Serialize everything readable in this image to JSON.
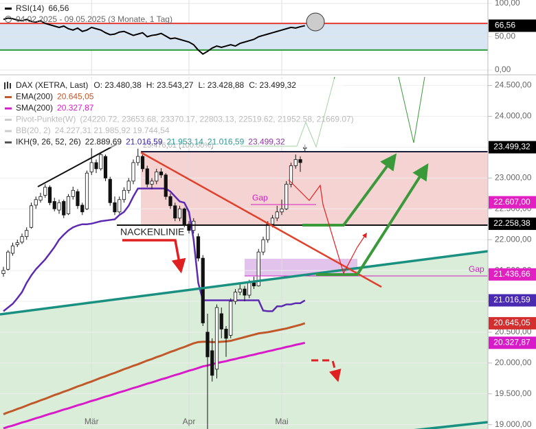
{
  "chart_data": [
    {
      "type": "line",
      "subtitle": "04.02.2025 - 09.05.2025 (3 Monate, 1 Tag)",
      "series": [
        {
          "name": "RSI(14)",
          "value_label": "66,56",
          "color": "#000000",
          "values": [
            76,
            78,
            77,
            75,
            74,
            76,
            73,
            72,
            74,
            70,
            68,
            66,
            64,
            66,
            62,
            60,
            63,
            58,
            60,
            64,
            62,
            60,
            56,
            53,
            54,
            57,
            58,
            55,
            52,
            54,
            56,
            50,
            52,
            53,
            55,
            51,
            47,
            48,
            46,
            44,
            42,
            38,
            30,
            24,
            28,
            33,
            36,
            34,
            36,
            38,
            36,
            40,
            42,
            44,
            46,
            50,
            52,
            54,
            56,
            58,
            60,
            62,
            64,
            63,
            65,
            66.56
          ]
        }
      ],
      "ylim": [
        0,
        100
      ],
      "yticks": [
        {
          "value": 0,
          "label": "0,00"
        },
        {
          "value": 50,
          "label": "50,00"
        },
        {
          "value": 100,
          "label": "100,00"
        }
      ],
      "levels": [
        {
          "value": 70,
          "color": "#e53935"
        },
        {
          "value": 30,
          "color": "#2e9c3a"
        }
      ],
      "band_color": "#d8e6f3"
    },
    {
      "type": "candlestick",
      "title": "DAX (XETRA, Last)",
      "ohlc_labels": [
        "O: 23.480,38",
        "H: 23.543,27",
        "L: 23.428,88",
        "C: 23.499,32"
      ],
      "categories": [
        null,
        null,
        null,
        null,
        null,
        null,
        null,
        null,
        null,
        null,
        null,
        null,
        null,
        null,
        null,
        null,
        null,
        null,
        null,
        "Mär",
        null,
        null,
        null,
        null,
        null,
        null,
        null,
        null,
        null,
        null,
        null,
        null,
        null,
        null,
        null,
        null,
        null,
        null,
        null,
        null,
        "Apr",
        null,
        null,
        null,
        null,
        null,
        null,
        null,
        null,
        null,
        null,
        null,
        null,
        null,
        null,
        null,
        null,
        null,
        null,
        null,
        "Mai",
        null,
        null,
        null,
        null,
        null
      ],
      "ohlc": [
        [
          21450,
          21560,
          21400,
          21500
        ],
        [
          21520,
          21830,
          21500,
          21800
        ],
        [
          21780,
          21950,
          21740,
          21900
        ],
        [
          21920,
          22000,
          21880,
          21950
        ],
        [
          21960,
          22100,
          21930,
          22050
        ],
        [
          22050,
          22200,
          22000,
          22150
        ],
        [
          22200,
          22600,
          22180,
          22550
        ],
        [
          22560,
          22700,
          22500,
          22650
        ],
        [
          22640,
          22760,
          22600,
          22700
        ],
        [
          22720,
          22900,
          22680,
          22850
        ],
        [
          22850,
          22880,
          22560,
          22600
        ],
        [
          22620,
          22680,
          22460,
          22500
        ],
        [
          22480,
          22650,
          22420,
          22600
        ],
        [
          22620,
          22650,
          22350,
          22400
        ],
        [
          22420,
          22740,
          22400,
          22700
        ],
        [
          22700,
          22860,
          22650,
          22800
        ],
        [
          22780,
          22820,
          22500,
          22550
        ],
        [
          22560,
          22600,
          22400,
          22450
        ],
        [
          22500,
          23120,
          22480,
          23080
        ],
        [
          23100,
          23480,
          23050,
          23250
        ],
        [
          23250,
          23300,
          23080,
          23150
        ],
        [
          23150,
          23420,
          23120,
          23380
        ],
        [
          23350,
          23380,
          22950,
          23000
        ],
        [
          22980,
          23020,
          22550,
          22600
        ],
        [
          22600,
          22700,
          22400,
          22450
        ],
        [
          22450,
          22700,
          22420,
          22650
        ],
        [
          22650,
          22850,
          22600,
          22800
        ],
        [
          22800,
          23000,
          22750,
          22950
        ],
        [
          22950,
          23300,
          22900,
          23250
        ],
        [
          23250,
          23476,
          23200,
          23350
        ],
        [
          23350,
          23380,
          23100,
          23150
        ],
        [
          23150,
          23200,
          22850,
          22900
        ],
        [
          22900,
          23000,
          22820,
          22950
        ],
        [
          22950,
          23150,
          22900,
          23100
        ],
        [
          23100,
          23160,
          23000,
          23050
        ],
        [
          23050,
          23080,
          22650,
          22700
        ],
        [
          22700,
          22750,
          22500,
          22550
        ],
        [
          22550,
          22600,
          22300,
          22350
        ],
        [
          22350,
          22550,
          22300,
          22500
        ],
        [
          22500,
          22520,
          22200,
          22250
        ],
        [
          22250,
          22300,
          22100,
          22150
        ],
        [
          22150,
          22350,
          22100,
          22300
        ],
        [
          22050,
          22100,
          21650,
          21700
        ],
        [
          21700,
          21750,
          20600,
          20650
        ],
        [
          20500,
          20800,
          18890,
          20100
        ],
        [
          20200,
          20400,
          19700,
          19800
        ],
        [
          19900,
          20950,
          19750,
          20900
        ],
        [
          20800,
          20900,
          20400,
          20550
        ],
        [
          20550,
          20600,
          20100,
          20400
        ],
        [
          20450,
          21050,
          20400,
          21000
        ],
        [
          21000,
          21200,
          20950,
          21150
        ],
        [
          21150,
          21300,
          21100,
          21200
        ],
        [
          21200,
          21250,
          21000,
          21100
        ],
        [
          21100,
          21350,
          21050,
          21300
        ],
        [
          21300,
          21400,
          21200,
          21250
        ],
        [
          21250,
          21850,
          21240,
          21800
        ],
        [
          21800,
          22050,
          21750,
          22000
        ],
        [
          22000,
          22300,
          21950,
          22250
        ],
        [
          22250,
          22400,
          22200,
          22350
        ],
        [
          22350,
          22550,
          22300,
          22450
        ],
        [
          22450,
          22650,
          22400,
          22500
        ],
        [
          22500,
          22950,
          22480,
          22900
        ],
        [
          22900,
          23250,
          22850,
          23200
        ],
        [
          23200,
          23380,
          23150,
          23300
        ],
        [
          23300,
          23350,
          23100,
          23250
        ],
        [
          23480.38,
          23543.27,
          23428.88,
          23499.32
        ]
      ],
      "series": [
        {
          "name": "EMA(200)",
          "value_label": "20.645,05",
          "color": "#c0582a",
          "values": [
            19170,
            19200,
            19225,
            19255,
            19280,
            19310,
            19340,
            19365,
            19395,
            19420,
            19450,
            19480,
            19505,
            19535,
            19560,
            19590,
            19620,
            19645,
            19675,
            19700,
            19730,
            19760,
            19785,
            19815,
            19840,
            19870,
            19900,
            19925,
            19955,
            19980,
            20010,
            20040,
            20065,
            20095,
            20120,
            20150,
            20180,
            20205,
            20235,
            20260,
            20290,
            20320,
            20340,
            20345,
            20345,
            20340,
            20340,
            20345,
            20350,
            20360,
            20380,
            20400,
            20420,
            20440,
            20460,
            20480,
            20490,
            20500,
            20515,
            20530,
            20545,
            20560,
            20580,
            20600,
            20620,
            20645.05
          ]
        },
        {
          "name": "SMA(200)",
          "value_label": "20.327,87",
          "color": "#d81bc8",
          "values": [
            18940,
            18965,
            18985,
            19010,
            19035,
            19055,
            19080,
            19105,
            19125,
            19150,
            19175,
            19195,
            19220,
            19245,
            19265,
            19290,
            19315,
            19335,
            19360,
            19385,
            19405,
            19430,
            19455,
            19475,
            19500,
            19525,
            19545,
            19570,
            19595,
            19615,
            19640,
            19665,
            19685,
            19710,
            19735,
            19755,
            19780,
            19805,
            19825,
            19850,
            19875,
            19895,
            19920,
            19945,
            19960,
            19980,
            20000,
            20015,
            20030,
            20050,
            20065,
            20085,
            20100,
            20120,
            20135,
            20155,
            20170,
            20190,
            20205,
            20225,
            20240,
            20260,
            20275,
            20295,
            20310,
            20327.87
          ]
        },
        {
          "name": "IKH(9, 26, 52, 26)",
          "color": "#5b2ab0",
          "legend_values": [
            "22.889,69",
            "21.016,59",
            "21.953,14",
            "21.016,59",
            "23.499,32"
          ],
          "legend_colors": [
            "#222222",
            "#3a2aa8",
            "#2a9a9a",
            "#2a9a9a",
            "#8a3aa0"
          ],
          "values": [
            20840,
            20900,
            20960,
            21050,
            21150,
            21300,
            21420,
            21520,
            21600,
            21680,
            21780,
            21880,
            22000,
            22080,
            22150,
            22200,
            22230,
            22250,
            22250,
            22260,
            22280,
            22300,
            22310,
            22320,
            22330,
            22400,
            22450,
            22550,
            22700,
            22830,
            22830,
            22830,
            22830,
            22830,
            22830,
            22830,
            22780,
            22700,
            22620,
            22600,
            22450,
            22000,
            21300,
            21016.59,
            21016.59,
            21016.59,
            21016.59,
            21016.59,
            21016.59,
            21016.59,
            21016.59,
            21016.59,
            21016.59,
            21016.59,
            21016.59,
            21016.59,
            20850,
            20840,
            20840,
            20920,
            20920,
            20950,
            20950,
            20970,
            20970,
            21016.59
          ]
        }
      ],
      "legend_extra": [
        {
          "name": "Pivot-Punkte(W)",
          "text": "(24220.72, 23653.68, 23370.17, 22803.13, 22519.62, 21952.58, 21669.07)"
        },
        {
          "name": "BB(20, 2)",
          "text": "24.227,31  21.985,92  19.744,54"
        }
      ],
      "ylim": [
        18930,
        24640
      ],
      "yticks": [
        {
          "value": 24500,
          "label": "24.500,00"
        },
        {
          "value": 24000,
          "label": "24.000,00"
        },
        {
          "value": 23500,
          "label": "23.500,00"
        },
        {
          "value": 23000,
          "label": "23.000,00"
        },
        {
          "value": 22500,
          "label": "22.500,00"
        },
        {
          "value": 22000,
          "label": "22.000,00"
        },
        {
          "value": 21500,
          "label": "21.500,00"
        },
        {
          "value": 21000,
          "label": "21.000,00"
        },
        {
          "value": 20500,
          "label": "20.500,00"
        },
        {
          "value": 20000,
          "label": "20.000,00"
        },
        {
          "value": 19500,
          "label": "19.500,00"
        },
        {
          "value": 19000,
          "label": "19.000,00"
        }
      ],
      "price_tags": [
        {
          "value": 23499.32,
          "label": "23.499,32",
          "color": "#000000"
        },
        {
          "value": 22607,
          "label": "22.607,00",
          "color": "#e020c0"
        },
        {
          "value": 22258.38,
          "label": "22.258,38",
          "color": "#000000"
        },
        {
          "value": 21436.66,
          "label": "21.436,66",
          "color": "#e020c0"
        },
        {
          "value": 21016.59,
          "label": "21.016,59",
          "color": "#4a2ab0"
        },
        {
          "value": 20645.05,
          "label": "20.645,05",
          "color": "#d32f2f"
        },
        {
          "value": 20327.87,
          "label": "20.327,87",
          "color": "#d81bc8"
        }
      ],
      "annotations": [
        "NACKENLINIE",
        "Gap",
        "Gap",
        "23.476,01 (100.00%)"
      ]
    }
  ]
}
